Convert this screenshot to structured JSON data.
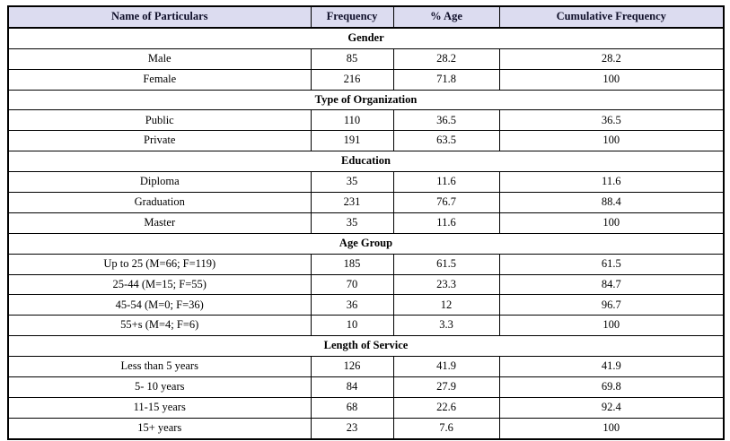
{
  "table": {
    "colors": {
      "header_bg": "#dcdcf0",
      "border": "#000000",
      "text": "#000000"
    },
    "columns": [
      "Name of Particulars",
      "Frequency",
      "% Age",
      "Cumulative Frequency"
    ],
    "sections": [
      {
        "title": "Gender",
        "rows": [
          [
            "Male",
            "85",
            "28.2",
            "28.2"
          ],
          [
            "Female",
            "216",
            "71.8",
            "100"
          ]
        ]
      },
      {
        "title": "Type of Organization",
        "rows": [
          [
            "Public",
            "110",
            "36.5",
            "36.5"
          ],
          [
            "Private",
            "191",
            "63.5",
            "100"
          ]
        ]
      },
      {
        "title": "Education",
        "rows": [
          [
            "Diploma",
            "35",
            "11.6",
            "11.6"
          ],
          [
            "Graduation",
            "231",
            "76.7",
            "88.4"
          ],
          [
            "Master",
            "35",
            "11.6",
            "100"
          ]
        ]
      },
      {
        "title": "Age Group",
        "rows": [
          [
            "Up to 25 (M=66; F=119)",
            "185",
            "61.5",
            "61.5"
          ],
          [
            "25-44 (M=15; F=55)",
            "70",
            "23.3",
            "84.7"
          ],
          [
            "45-54 (M=0; F=36)",
            "36",
            "12",
            "96.7"
          ],
          [
            "55+s (M=4; F=6)",
            "10",
            "3.3",
            "100"
          ]
        ]
      },
      {
        "title": "Length of Service",
        "rows": [
          [
            "Less than 5 years",
            "126",
            "41.9",
            "41.9"
          ],
          [
            "5- 10 years",
            "84",
            "27.9",
            "69.8"
          ],
          [
            "11-15 years",
            "68",
            "22.6",
            "92.4"
          ],
          [
            "15+ years",
            "23",
            "7.6",
            "100"
          ]
        ]
      }
    ]
  }
}
